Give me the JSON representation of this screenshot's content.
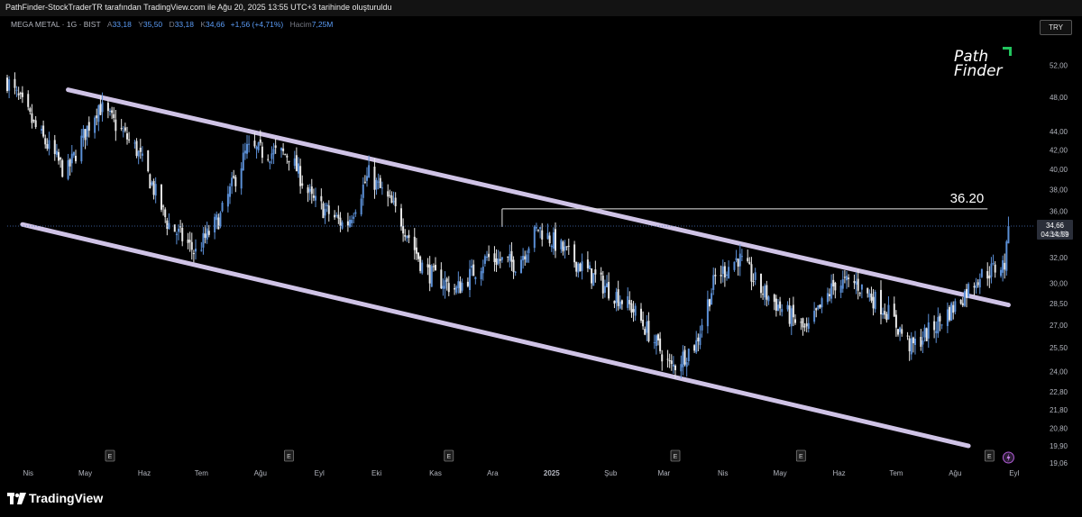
{
  "header": {
    "title": "PathFinder-StockTraderTR tarafından TradingView.com ile Ağu 20, 2025 13:55 UTC+3 tarihinde oluşturuldu"
  },
  "legend": {
    "symbol": "MEGA METAL · 1G · BIST",
    "open_label": "A",
    "open": "33,18",
    "high_label": "Y",
    "high": "35,50",
    "low_label": "D",
    "low": "33,18",
    "close_label": "K",
    "close": "34,66",
    "change": "+1,56 (+4,71%)",
    "volume_label": "Hacim",
    "volume": "7,25M"
  },
  "currency": "TRY",
  "logo": {
    "line1": "Path",
    "line2": "Finder"
  },
  "footer": {
    "brand": "TradingView"
  },
  "colors": {
    "background": "#000000",
    "candle_up": "#5b8fd6",
    "candle_down": "#e8e8e8",
    "channel": "#cfc3e6",
    "price_tag": "#2a2e39",
    "logo_accent": "#22c55e"
  },
  "chart_data": {
    "type": "candlestick",
    "title": "MEGA METAL · 1G · BIST",
    "y_axis": {
      "ticks": [
        "52,00",
        "48,00",
        "44,00",
        "42,00",
        "40,00",
        "38,00",
        "36,00",
        "34,00",
        "32,00",
        "30,00",
        "28,50",
        "27,00",
        "25,50",
        "24,00",
        "22,80",
        "21,80",
        "20,80",
        "19,90",
        "19,06"
      ],
      "scale": "log",
      "range": [
        19.06,
        56
      ]
    },
    "x_axis": {
      "ticks": [
        "Nis",
        "May",
        "Haz",
        "Tem",
        "Ağu",
        "Eyl",
        "Eki",
        "Kas",
        "Ara",
        "2025",
        "Şub",
        "Mar",
        "Nis",
        "May",
        "Haz",
        "Tem",
        "Ağu",
        "Eyl"
      ],
      "range": [
        "2024-03-21",
        "2025-09-12"
      ]
    },
    "last_price": {
      "value": "34,66",
      "countdown": "04:14:59"
    },
    "resistance": {
      "label": "36.20",
      "value": 36.2,
      "from": "2024-12-06",
      "to": "2025-08-18"
    },
    "channel": {
      "upper": [
        {
          "x": "2024-04-22",
          "y": 48.9
        },
        {
          "x": "2025-08-29",
          "y": 28.4
        }
      ],
      "lower": [
        {
          "x": "2024-03-29",
          "y": 34.8
        },
        {
          "x": "2025-08-08",
          "y": 19.9
        }
      ]
    },
    "earnings_markers": {
      "label": "E",
      "dates": [
        "2024-05-14",
        "2024-08-16",
        "2024-11-08",
        "2025-03-07",
        "2025-05-12",
        "2025-08-19"
      ]
    },
    "alert_icon_date": "2025-08-29",
    "series": [
      {
        "x": "2024-03-21",
        "y": 50.0
      },
      {
        "x": "2024-04-06",
        "y": 44.0
      },
      {
        "x": "2024-04-21",
        "y": 39.5
      },
      {
        "x": "2024-05-08",
        "y": 47.0
      },
      {
        "x": "2024-05-28",
        "y": 42.0
      },
      {
        "x": "2024-06-13",
        "y": 35.0
      },
      {
        "x": "2024-06-28",
        "y": 32.4
      },
      {
        "x": "2024-07-11",
        "y": 35.5
      },
      {
        "x": "2024-07-25",
        "y": 42.0
      },
      {
        "x": "2024-08-16",
        "y": 41.5
      },
      {
        "x": "2024-08-28",
        "y": 37.0
      },
      {
        "x": "2024-09-15",
        "y": 34.6
      },
      {
        "x": "2024-09-27",
        "y": 39.5
      },
      {
        "x": "2024-10-13",
        "y": 35.5
      },
      {
        "x": "2024-10-26",
        "y": 31.0
      },
      {
        "x": "2024-11-12",
        "y": 29.5
      },
      {
        "x": "2024-11-28",
        "y": 32.0
      },
      {
        "x": "2024-12-14",
        "y": 31.5
      },
      {
        "x": "2024-12-25",
        "y": 34.5
      },
      {
        "x": "2025-01-09",
        "y": 32.3
      },
      {
        "x": "2025-01-27",
        "y": 30.0
      },
      {
        "x": "2025-02-12",
        "y": 28.2
      },
      {
        "x": "2025-03-05",
        "y": 24.2
      },
      {
        "x": "2025-03-18",
        "y": 25.8
      },
      {
        "x": "2025-03-28",
        "y": 30.4
      },
      {
        "x": "2025-04-09",
        "y": 32.0
      },
      {
        "x": "2025-04-21",
        "y": 29.5
      },
      {
        "x": "2025-05-03",
        "y": 28.0
      },
      {
        "x": "2025-05-15",
        "y": 26.5
      },
      {
        "x": "2025-05-30",
        "y": 30.0
      },
      {
        "x": "2025-06-10",
        "y": 30.0
      },
      {
        "x": "2025-06-26",
        "y": 28.0
      },
      {
        "x": "2025-07-09",
        "y": 25.5
      },
      {
        "x": "2025-07-22",
        "y": 27.0
      },
      {
        "x": "2025-08-02",
        "y": 28.5
      },
      {
        "x": "2025-08-13",
        "y": 30.5
      },
      {
        "x": "2025-08-27",
        "y": 31.5
      },
      {
        "x": "2025-08-30",
        "y": 34.66
      }
    ]
  }
}
